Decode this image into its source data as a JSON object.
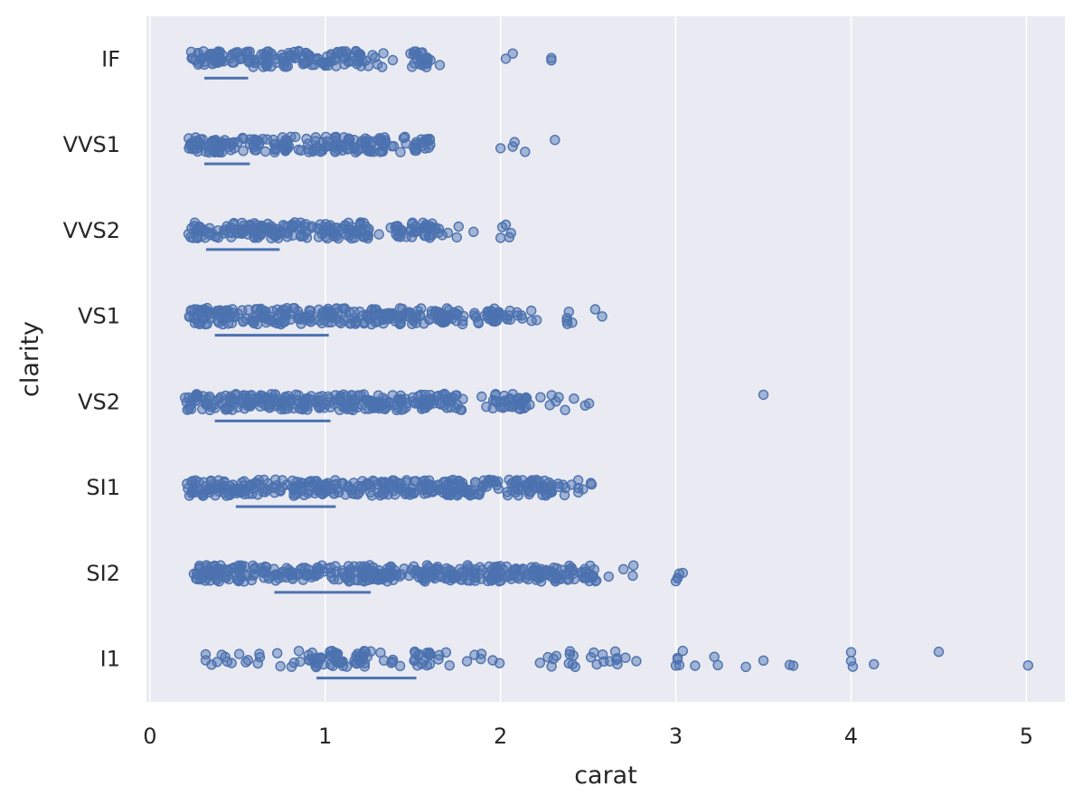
{
  "chart_data": {
    "type": "scatter",
    "subtype": "strip-plot",
    "title": "",
    "xlabel": "carat",
    "ylabel": "clarity",
    "xlim": [
      -0.02,
      5.22
    ],
    "x_ticks": [
      0,
      1,
      2,
      3,
      4,
      5
    ],
    "x_tick_labels": [
      "0",
      "1",
      "2",
      "3",
      "4",
      "5"
    ],
    "grid": "x-major",
    "categories": [
      "IF",
      "VVS1",
      "VVS2",
      "VS1",
      "VS2",
      "SI1",
      "SI2",
      "I1"
    ],
    "point_color": "#4c72b0",
    "background_color": "#eaeaf2",
    "grid_color": "#ffffff",
    "series": [
      {
        "category": "IF",
        "dense_ranges": [
          [
            0.23,
            0.7
          ],
          [
            0.75,
            1.25
          ],
          [
            1.5,
            1.6
          ]
        ],
        "scattered_range": [
          0.23,
          1.67
        ],
        "outliers": [
          2.03,
          2.07,
          2.29,
          2.29
        ],
        "iqr": [
          0.31,
          0.56
        ]
      },
      {
        "category": "VVS1",
        "dense_ranges": [
          [
            0.22,
            0.8
          ],
          [
            0.9,
            1.35
          ],
          [
            1.5,
            1.6
          ]
        ],
        "scattered_range": [
          0.22,
          1.72
        ],
        "outliers": [
          2.0,
          2.07,
          2.08,
          2.14,
          2.31
        ],
        "iqr": [
          0.31,
          0.57
        ]
      },
      {
        "category": "VVS2",
        "dense_ranges": [
          [
            0.22,
            1.25
          ],
          [
            1.4,
            1.6
          ]
        ],
        "scattered_range": [
          0.22,
          1.85
        ],
        "outliers": [
          2.0,
          2.01,
          2.03,
          2.05,
          2.06
        ],
        "iqr": [
          0.32,
          0.74
        ]
      },
      {
        "category": "VS1",
        "dense_ranges": [
          [
            0.22,
            1.75
          ],
          [
            1.85,
            2.05
          ]
        ],
        "scattered_range": [
          0.22,
          2.45
        ],
        "outliers": [
          2.54,
          2.58
        ],
        "iqr": [
          0.37,
          1.02
        ]
      },
      {
        "category": "VS2",
        "dense_ranges": [
          [
            0.2,
            1.8
          ],
          [
            1.95,
            2.15
          ]
        ],
        "scattered_range": [
          0.2,
          2.52
        ],
        "outliers": [
          3.5
        ],
        "iqr": [
          0.37,
          1.03
        ]
      },
      {
        "category": "SI1",
        "dense_ranges": [
          [
            0.21,
            2.0
          ],
          [
            2.0,
            2.3
          ]
        ],
        "scattered_range": [
          0.21,
          2.57
        ],
        "outliers": [],
        "iqr": [
          0.49,
          1.06
        ]
      },
      {
        "category": "SI2",
        "dense_ranges": [
          [
            0.25,
            2.55
          ]
        ],
        "scattered_range": [
          0.2,
          2.8
        ],
        "outliers": [
          3.0,
          3.01,
          3.01,
          3.02,
          3.04
        ],
        "iqr": [
          0.71,
          1.26
        ]
      },
      {
        "category": "I1",
        "dense_ranges": [
          [
            0.9,
            1.25
          ],
          [
            1.5,
            1.6
          ]
        ],
        "scattered_range": [
          0.3,
          2.8
        ],
        "outliers": [
          3.0,
          3.01,
          3.01,
          3.02,
          3.04,
          3.11,
          3.22,
          3.24,
          3.4,
          3.5,
          3.65,
          3.67,
          4.0,
          4.0,
          4.01,
          4.13,
          4.5,
          5.01
        ],
        "iqr": [
          0.95,
          1.52
        ]
      }
    ]
  }
}
